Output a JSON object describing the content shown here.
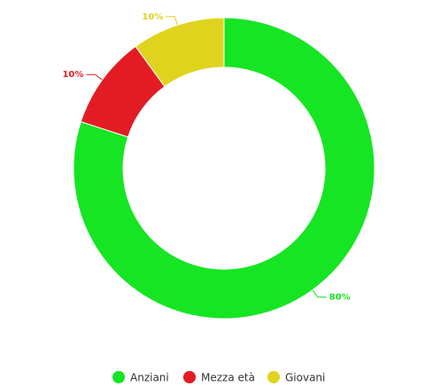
{
  "chart_data": {
    "type": "donut",
    "categories": [
      "Anziani",
      "Mezza età",
      "Giovani"
    ],
    "values": [
      80,
      10,
      10
    ],
    "value_labels": [
      "80%",
      "10%",
      "10%"
    ],
    "colors": [
      "#16e523",
      "#e31c23",
      "#e0d31e"
    ],
    "legend": "bottom"
  }
}
